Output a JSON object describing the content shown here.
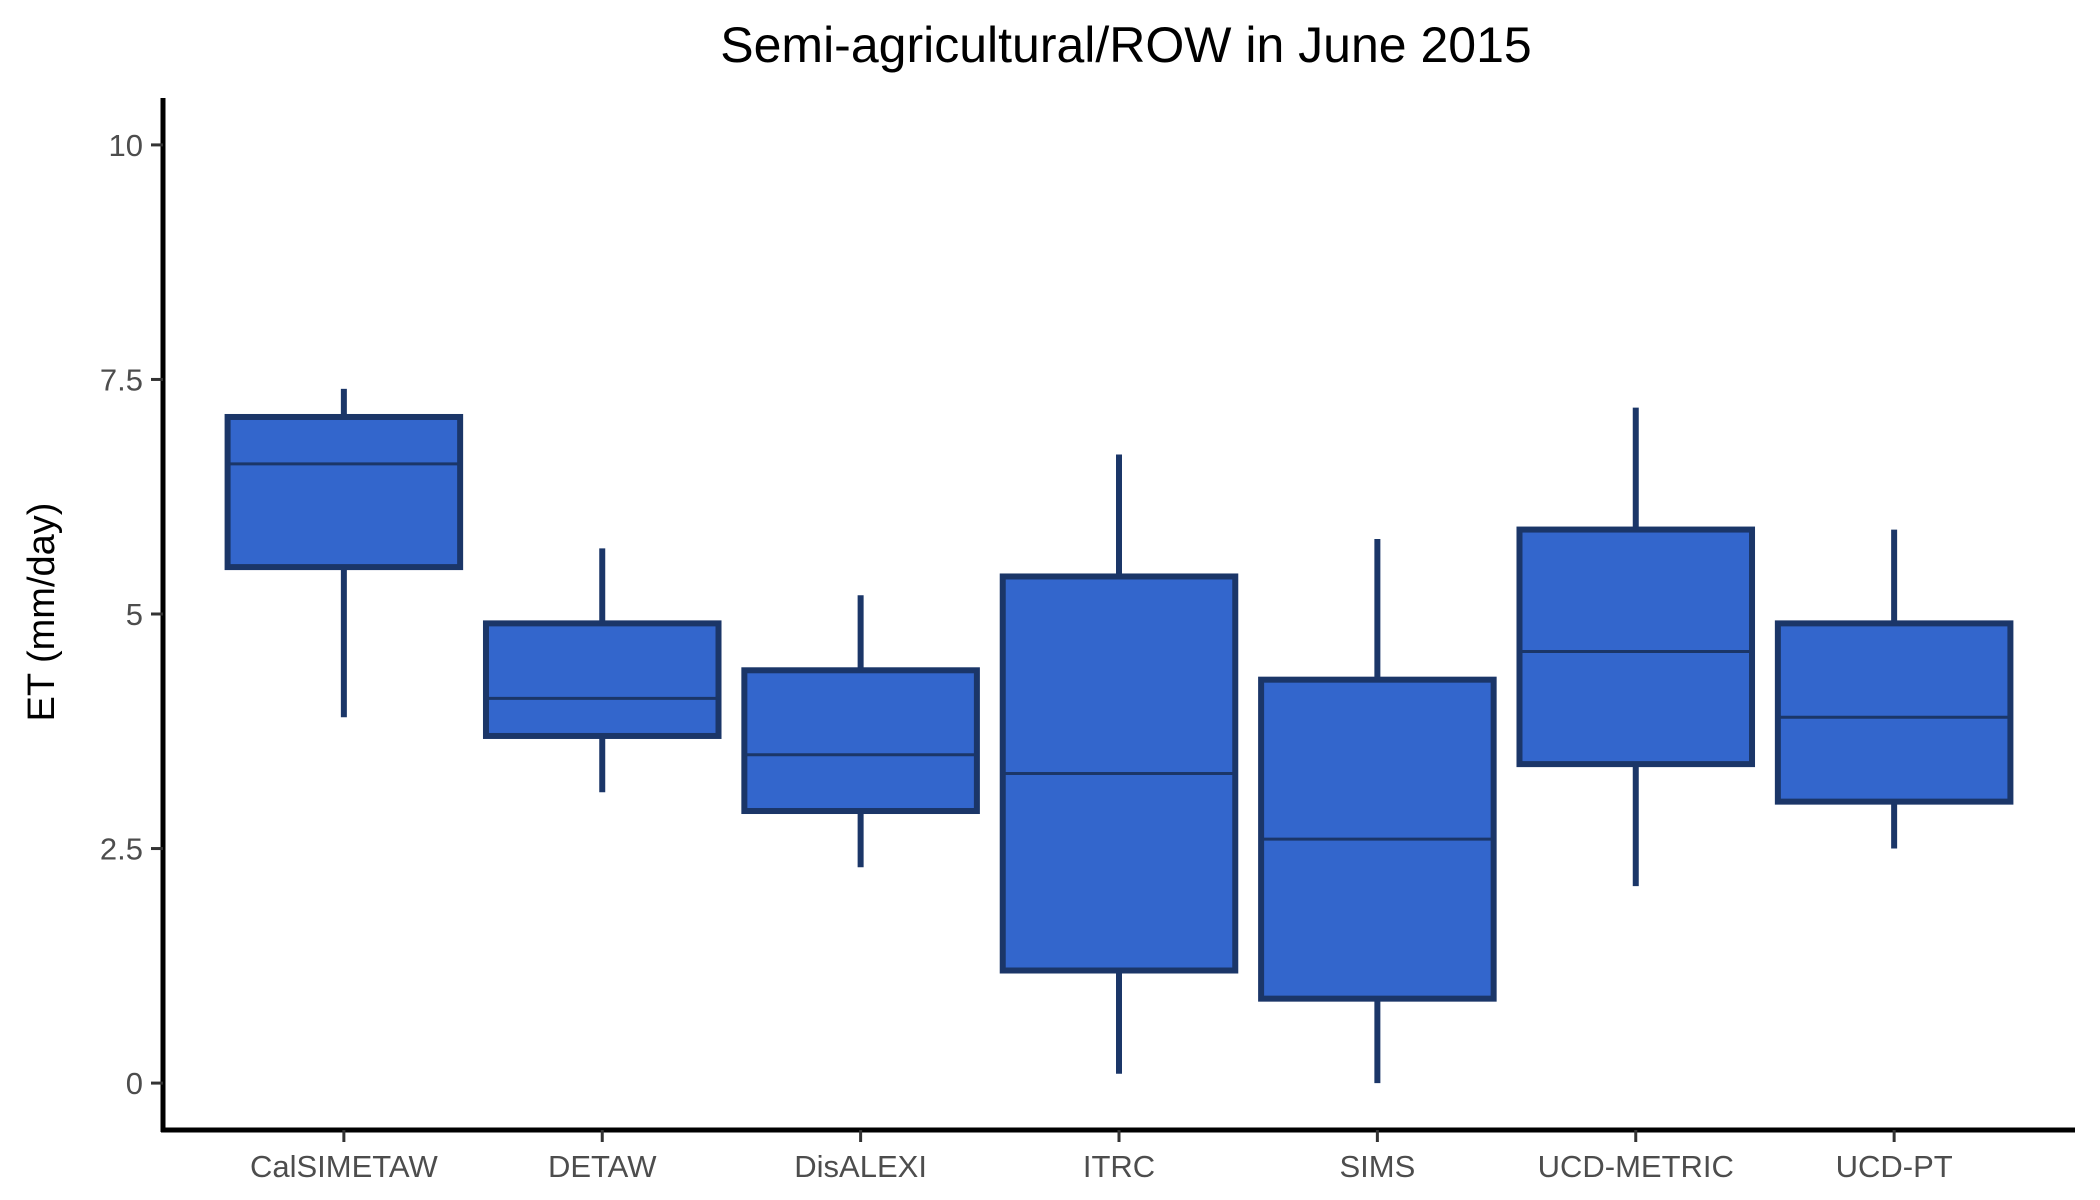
{
  "chart_data": {
    "type": "box",
    "title": "Semi-agricultural/ROW in June 2015",
    "xlabel": "",
    "ylabel": "ET (mm/day)",
    "ylim": [
      -0.5,
      10.5
    ],
    "yticks": [
      0,
      2.5,
      5,
      7.5,
      10
    ],
    "ytick_labels": [
      "0",
      "2.5",
      "5",
      "7.5",
      "10"
    ],
    "categories": [
      "CalSIMETAW",
      "DETAW",
      "DisALEXI",
      "ITRC",
      "SIMS",
      "UCD-METRIC",
      "UCD-PT"
    ],
    "series": [
      {
        "boxes": [
          {
            "category": "CalSIMETAW",
            "min": 3.9,
            "q1": 5.5,
            "median": 6.6,
            "q3": 7.1,
            "max": 7.4
          },
          {
            "category": "DETAW",
            "min": 3.1,
            "q1": 3.7,
            "median": 4.1,
            "q3": 4.9,
            "max": 5.7
          },
          {
            "category": "DisALEXI",
            "min": 2.3,
            "q1": 2.9,
            "median": 3.5,
            "q3": 4.4,
            "max": 5.2
          },
          {
            "category": "ITRC",
            "min": 0.1,
            "q1": 1.2,
            "median": 3.3,
            "q3": 5.4,
            "max": 6.7
          },
          {
            "category": "SIMS",
            "min": 0.0,
            "q1": 0.9,
            "median": 2.6,
            "q3": 4.3,
            "max": 5.8
          },
          {
            "category": "UCD-METRIC",
            "min": 2.1,
            "q1": 3.4,
            "median": 4.6,
            "q3": 5.9,
            "max": 7.2
          },
          {
            "category": "UCD-PT",
            "min": 2.5,
            "q1": 3.0,
            "median": 3.9,
            "q3": 4.9,
            "max": 5.9
          }
        ]
      }
    ],
    "grid": false,
    "legend": "none",
    "colors": {
      "box_fill": "#3366CC",
      "box_stroke": "#1B3668",
      "axis": "#000000",
      "tick_label": "#4D4D4D",
      "background": "#FFFFFF"
    }
  }
}
